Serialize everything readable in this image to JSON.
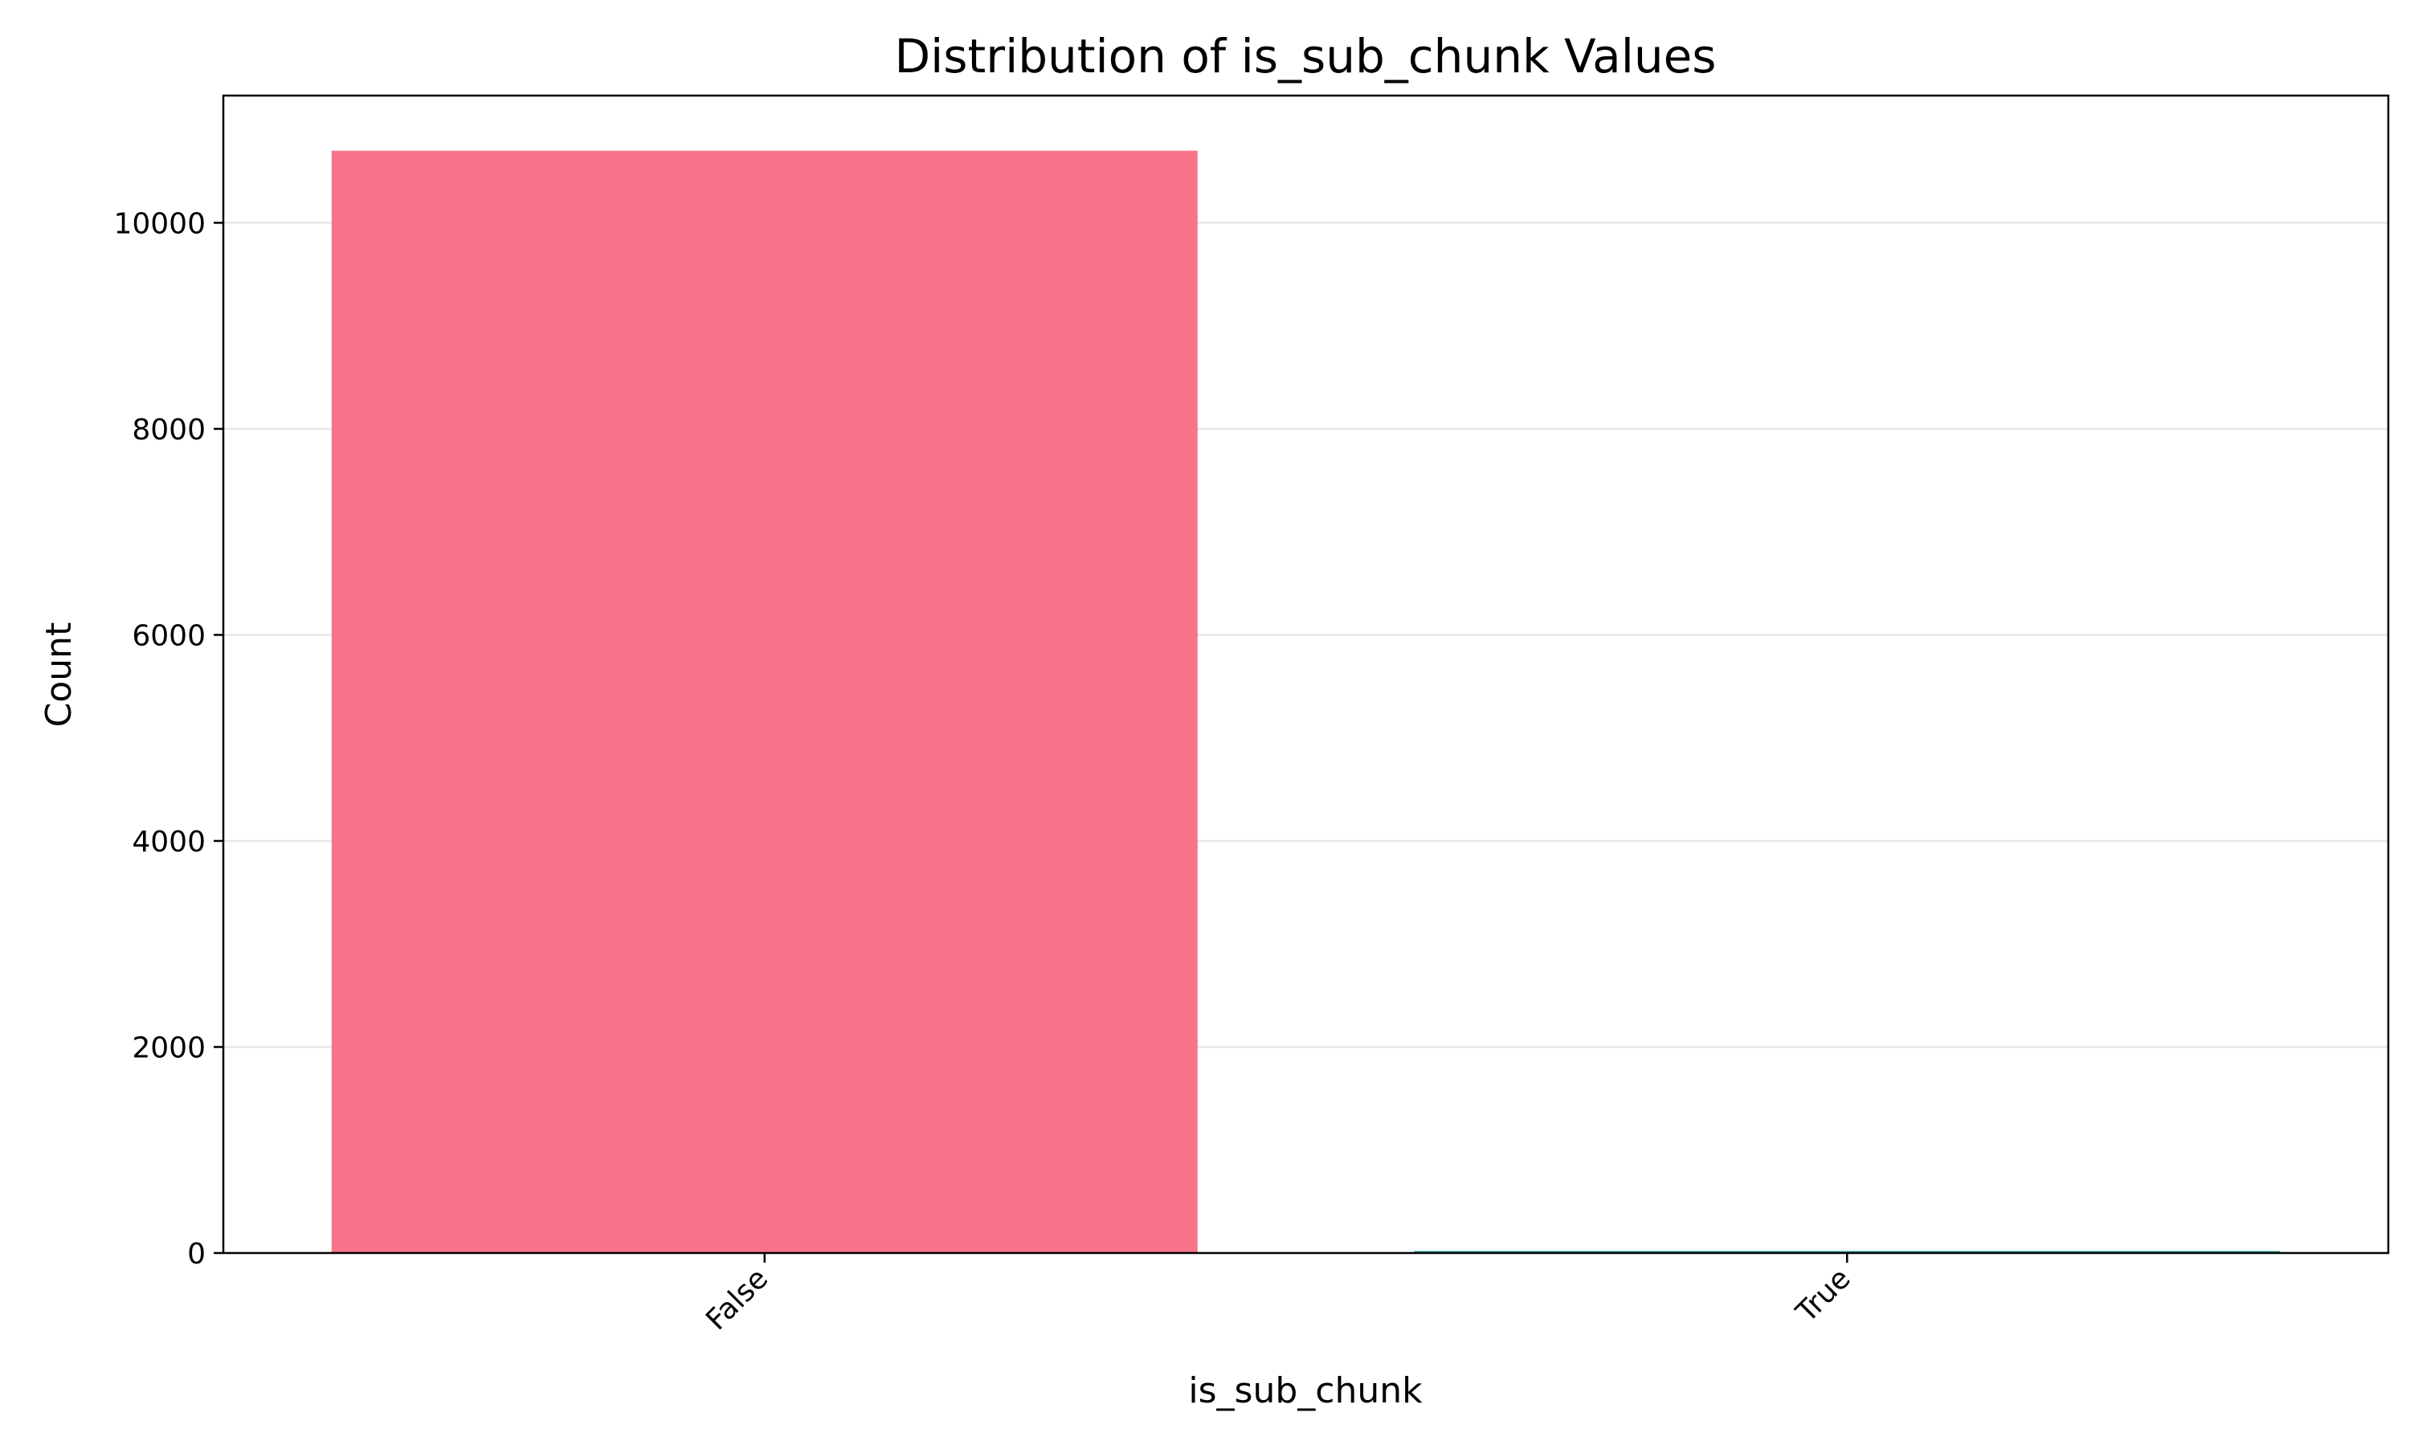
{
  "chart_data": {
    "type": "bar",
    "title": "Distribution of is_sub_chunk Values",
    "xlabel": "is_sub_chunk",
    "ylabel": "Count",
    "categories": [
      "False",
      "True"
    ],
    "values": [
      10700,
      20
    ],
    "colors": [
      "#f7738a",
      "#36ada4"
    ],
    "yticks": [
      0,
      2000,
      4000,
      6000,
      8000,
      10000
    ],
    "ylim": [
      0,
      11235
    ],
    "grid": "y-axis horizontal lines",
    "legend": "none"
  }
}
